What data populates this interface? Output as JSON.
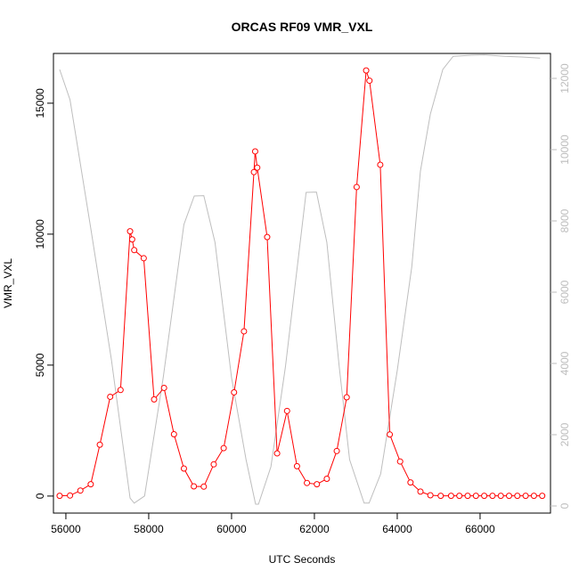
{
  "chart_data": {
    "type": "line",
    "title": "ORCAS RF09 VMR_VXL",
    "xlabel": "UTC Seconds",
    "ylabel": "VMR_VXL",
    "xlim": [
      55700,
      67700
    ],
    "ylim": [
      -650,
      16900
    ],
    "y2lim": [
      -200,
      12700
    ],
    "x_ticks": [
      56000,
      58000,
      60000,
      62000,
      64000,
      66000
    ],
    "y_ticks": [
      0,
      5000,
      10000,
      15000
    ],
    "y2_ticks": [
      0,
      2000,
      4000,
      6000,
      8000,
      10000,
      12000
    ],
    "grid": false,
    "colors": {
      "primary": "#ff0000",
      "secondary": "#bebebe",
      "axis": "#000000"
    },
    "series": [
      {
        "color": "#ff0000",
        "marker": "open-circle",
        "axis": "left",
        "x": [
          55850,
          56100,
          56350,
          56600,
          56820,
          57070,
          57320,
          57550,
          57600,
          57650,
          57880,
          58130,
          58370,
          58610,
          58850,
          59090,
          59330,
          59570,
          59810,
          60060,
          60300,
          60540,
          60570,
          60620,
          60860,
          61100,
          61340,
          61580,
          61820,
          62060,
          62300,
          62540,
          62780,
          63020,
          63250,
          63330,
          63590,
          63820,
          64070,
          64320,
          64560,
          64800,
          65050,
          65300,
          65500,
          65700,
          65900,
          66100,
          66300,
          66500,
          66700,
          66900,
          67100,
          67300,
          67500
        ],
        "y": [
          10,
          20,
          210,
          450,
          1960,
          3790,
          4050,
          10110,
          9800,
          9390,
          9080,
          3690,
          4130,
          2360,
          1050,
          370,
          360,
          1210,
          1830,
          3960,
          6290,
          12370,
          13160,
          12540,
          9890,
          1630,
          3250,
          1140,
          500,
          450,
          660,
          1720,
          3770,
          11800,
          16250,
          15860,
          12650,
          2350,
          1320,
          520,
          170,
          30,
          10,
          10,
          10,
          10,
          10,
          10,
          10,
          10,
          10,
          10,
          10,
          10,
          10
        ]
      },
      {
        "color": "#bebebe",
        "marker": "none",
        "axis": "right",
        "x": [
          55850,
          56100,
          56600,
          57100,
          57550,
          57650,
          57900,
          58350,
          58850,
          59100,
          59330,
          59600,
          60000,
          60350,
          60580,
          60650,
          60950,
          61300,
          61800,
          62050,
          62300,
          62600,
          62850,
          63200,
          63320,
          63600,
          64000,
          64350,
          64560,
          64800,
          65100,
          65350,
          65800,
          66100,
          66600,
          67000,
          67450
        ],
        "y": [
          12250,
          11400,
          7800,
          4100,
          220,
          80,
          280,
          3600,
          7900,
          8700,
          8710,
          7400,
          3600,
          1300,
          50,
          50,
          1100,
          3900,
          8800,
          8810,
          7400,
          3900,
          1300,
          80,
          80,
          900,
          3800,
          6700,
          9400,
          11000,
          12250,
          12620,
          12650,
          12660,
          12620,
          12600,
          12570
        ]
      }
    ]
  }
}
